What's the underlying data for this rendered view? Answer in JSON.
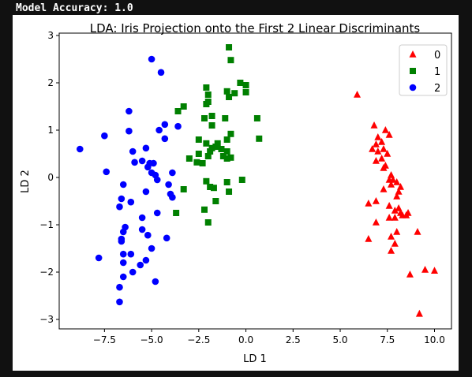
{
  "status_text": "Model Accuracy: 1.0",
  "chart_data": {
    "type": "scatter",
    "title": "LDA: Iris Projection onto the First 2 Linear Discriminants",
    "xlabel": "LD 1",
    "ylabel": "LD 2",
    "xlim": [
      -9.9,
      10.9
    ],
    "ylim": [
      -3.2,
      3.05
    ],
    "xticks": [
      -7.5,
      -5.0,
      -2.5,
      0.0,
      2.5,
      5.0,
      7.5,
      10.0
    ],
    "xtick_labels": [
      "−7.5",
      "−5.0",
      "−2.5",
      "0.0",
      "2.5",
      "5.0",
      "7.5",
      "10.0"
    ],
    "yticks": [
      -3,
      -2,
      -1,
      0,
      1,
      2,
      3
    ],
    "ytick_labels": [
      "−3",
      "−2",
      "−1",
      "0",
      "1",
      "2",
      "3"
    ],
    "grid": false,
    "legend_position": "top-right",
    "series": [
      {
        "name": "0",
        "marker": "triangle",
        "color": "#ff0000",
        "points": [
          [
            5.9,
            1.75
          ],
          [
            6.8,
            1.1
          ],
          [
            7.4,
            1.0
          ],
          [
            7.6,
            0.9
          ],
          [
            7.0,
            0.85
          ],
          [
            7.2,
            0.75
          ],
          [
            6.9,
            0.7
          ],
          [
            6.7,
            0.6
          ],
          [
            7.3,
            0.6
          ],
          [
            7.0,
            0.55
          ],
          [
            7.5,
            0.5
          ],
          [
            7.2,
            0.4
          ],
          [
            6.9,
            0.35
          ],
          [
            7.4,
            0.25
          ],
          [
            7.3,
            0.2
          ],
          [
            7.7,
            0.05
          ],
          [
            7.6,
            -0.05
          ],
          [
            7.8,
            -0.05
          ],
          [
            8.0,
            -0.1
          ],
          [
            7.7,
            -0.15
          ],
          [
            8.2,
            -0.2
          ],
          [
            7.3,
            -0.25
          ],
          [
            8.1,
            -0.3
          ],
          [
            8.0,
            -0.4
          ],
          [
            6.9,
            -0.5
          ],
          [
            6.5,
            -0.55
          ],
          [
            7.6,
            -0.6
          ],
          [
            8.1,
            -0.65
          ],
          [
            7.9,
            -0.7
          ],
          [
            8.2,
            -0.75
          ],
          [
            8.6,
            -0.75
          ],
          [
            8.3,
            -0.8
          ],
          [
            8.5,
            -0.8
          ],
          [
            7.6,
            -0.85
          ],
          [
            7.9,
            -0.85
          ],
          [
            6.9,
            -0.95
          ],
          [
            8.0,
            -1.15
          ],
          [
            9.1,
            -1.15
          ],
          [
            7.7,
            -1.25
          ],
          [
            6.5,
            -1.3
          ],
          [
            7.9,
            -1.4
          ],
          [
            7.7,
            -1.55
          ],
          [
            9.5,
            -1.95
          ],
          [
            10.0,
            -1.97
          ],
          [
            8.7,
            -2.05
          ],
          [
            9.2,
            -2.88
          ]
        ]
      },
      {
        "name": "1",
        "marker": "square",
        "color": "#008000",
        "points": [
          [
            -0.9,
            2.75
          ],
          [
            -0.8,
            2.48
          ],
          [
            -0.3,
            2.0
          ],
          [
            0.0,
            1.95
          ],
          [
            -2.1,
            1.9
          ],
          [
            -1.0,
            1.82
          ],
          [
            -0.6,
            1.78
          ],
          [
            0.0,
            1.8
          ],
          [
            -2.0,
            1.75
          ],
          [
            -0.9,
            1.7
          ],
          [
            -2.0,
            1.6
          ],
          [
            -2.1,
            1.55
          ],
          [
            -3.3,
            1.5
          ],
          [
            -3.6,
            1.4
          ],
          [
            -1.8,
            1.3
          ],
          [
            -2.2,
            1.25
          ],
          [
            -1.1,
            1.25
          ],
          [
            0.6,
            1.25
          ],
          [
            -1.8,
            1.1
          ],
          [
            -0.8,
            0.92
          ],
          [
            0.7,
            0.82
          ],
          [
            -2.5,
            0.8
          ],
          [
            -1.0,
            0.8
          ],
          [
            -2.1,
            0.72
          ],
          [
            -1.5,
            0.72
          ],
          [
            -1.6,
            0.65
          ],
          [
            -1.8,
            0.62
          ],
          [
            -1.9,
            0.55
          ],
          [
            -1.3,
            0.6
          ],
          [
            -2.5,
            0.5
          ],
          [
            -1.0,
            0.55
          ],
          [
            -1.2,
            0.45
          ],
          [
            -2.0,
            0.45
          ],
          [
            -1.0,
            0.4
          ],
          [
            -3.0,
            0.4
          ],
          [
            -0.8,
            0.42
          ],
          [
            -2.6,
            0.32
          ],
          [
            -2.3,
            0.3
          ],
          [
            -0.2,
            -0.05
          ],
          [
            -2.1,
            -0.08
          ],
          [
            -1.0,
            -0.1
          ],
          [
            -1.9,
            -0.2
          ],
          [
            -1.7,
            -0.22
          ],
          [
            -3.3,
            -0.25
          ],
          [
            -0.9,
            -0.3
          ],
          [
            -1.6,
            -0.5
          ],
          [
            -2.2,
            -0.68
          ],
          [
            -3.7,
            -0.75
          ],
          [
            -2.0,
            -0.95
          ]
        ]
      },
      {
        "name": "2",
        "marker": "circle",
        "color": "#0000ff",
        "points": [
          [
            -5.0,
            2.5
          ],
          [
            -4.5,
            2.22
          ],
          [
            -6.2,
            1.4
          ],
          [
            -4.3,
            1.12
          ],
          [
            -3.6,
            1.08
          ],
          [
            -6.2,
            0.98
          ],
          [
            -4.6,
            1.0
          ],
          [
            -7.5,
            0.88
          ],
          [
            -4.3,
            0.82
          ],
          [
            -8.8,
            0.6
          ],
          [
            -5.3,
            0.62
          ],
          [
            -6.0,
            0.55
          ],
          [
            -5.5,
            0.35
          ],
          [
            -5.9,
            0.32
          ],
          [
            -5.1,
            0.3
          ],
          [
            -4.9,
            0.3
          ],
          [
            -5.2,
            0.22
          ],
          [
            -7.4,
            0.12
          ],
          [
            -5.0,
            0.1
          ],
          [
            -4.8,
            0.05
          ],
          [
            -3.9,
            0.1
          ],
          [
            -4.7,
            -0.05
          ],
          [
            -6.5,
            -0.15
          ],
          [
            -4.1,
            -0.15
          ],
          [
            -5.3,
            -0.3
          ],
          [
            -4.0,
            -0.35
          ],
          [
            -3.9,
            -0.42
          ],
          [
            -6.6,
            -0.45
          ],
          [
            -6.1,
            -0.52
          ],
          [
            -6.7,
            -0.62
          ],
          [
            -4.7,
            -0.75
          ],
          [
            -5.5,
            -0.85
          ],
          [
            -6.4,
            -1.05
          ],
          [
            -5.5,
            -1.1
          ],
          [
            -6.5,
            -1.15
          ],
          [
            -5.2,
            -1.22
          ],
          [
            -4.2,
            -1.28
          ],
          [
            -6.6,
            -1.3
          ],
          [
            -6.6,
            -1.35
          ],
          [
            -5.0,
            -1.5
          ],
          [
            -6.5,
            -1.62
          ],
          [
            -6.1,
            -1.62
          ],
          [
            -7.8,
            -1.7
          ],
          [
            -5.3,
            -1.75
          ],
          [
            -6.5,
            -1.8
          ],
          [
            -5.6,
            -1.85
          ],
          [
            -6.0,
            -2.0
          ],
          [
            -6.5,
            -2.1
          ],
          [
            -4.8,
            -2.2
          ],
          [
            -6.7,
            -2.32
          ],
          [
            -6.7,
            -2.63
          ]
        ]
      }
    ]
  }
}
